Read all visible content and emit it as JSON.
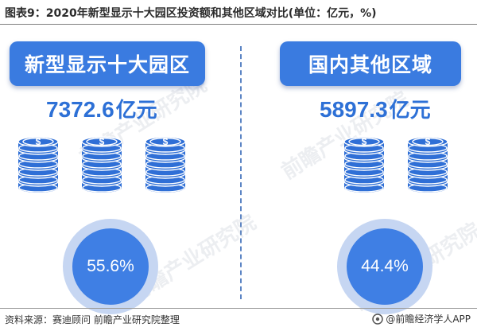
{
  "title": "图表9：2020年新型显示十大园区投资额和其他区域对比(单位：亿元，%)",
  "source": "资料来源：赛迪顾问 前瞻产业研究院整理",
  "brand": "@前瞻经济学人APP",
  "watermark": "前瞻产业研究院",
  "colors": {
    "header": "#3a7be0",
    "amount_text": "#2d70d6",
    "coin": "#2f6fd6",
    "circle": "#3f7fe4",
    "circle_ring": "#c6d6f2",
    "divider": "#5b84c4"
  },
  "chart_data": {
    "type": "table",
    "title": "图表9：2020年新型显示十大园区投资额和其他区域对比(单位：亿元，%)",
    "unit": "亿元，%",
    "categories": [
      "新型显示十大园区",
      "国内其他区域"
    ],
    "series": [
      {
        "values": [
          7372.6,
          5897.3
        ]
      },
      {
        "values": [
          55.6,
          44.4
        ]
      }
    ]
  },
  "panels": [
    {
      "label": "新型显示十大园区",
      "amount": "7372.6",
      "unit": "亿元",
      "share_value": 55.6,
      "share_text": "55.6%",
      "coin_stacks": 3
    },
    {
      "label": "国内其他区域",
      "amount": "5897.3",
      "unit": "亿元",
      "share_value": 44.4,
      "share_text": "44.4%",
      "coin_stacks": 2
    }
  ]
}
